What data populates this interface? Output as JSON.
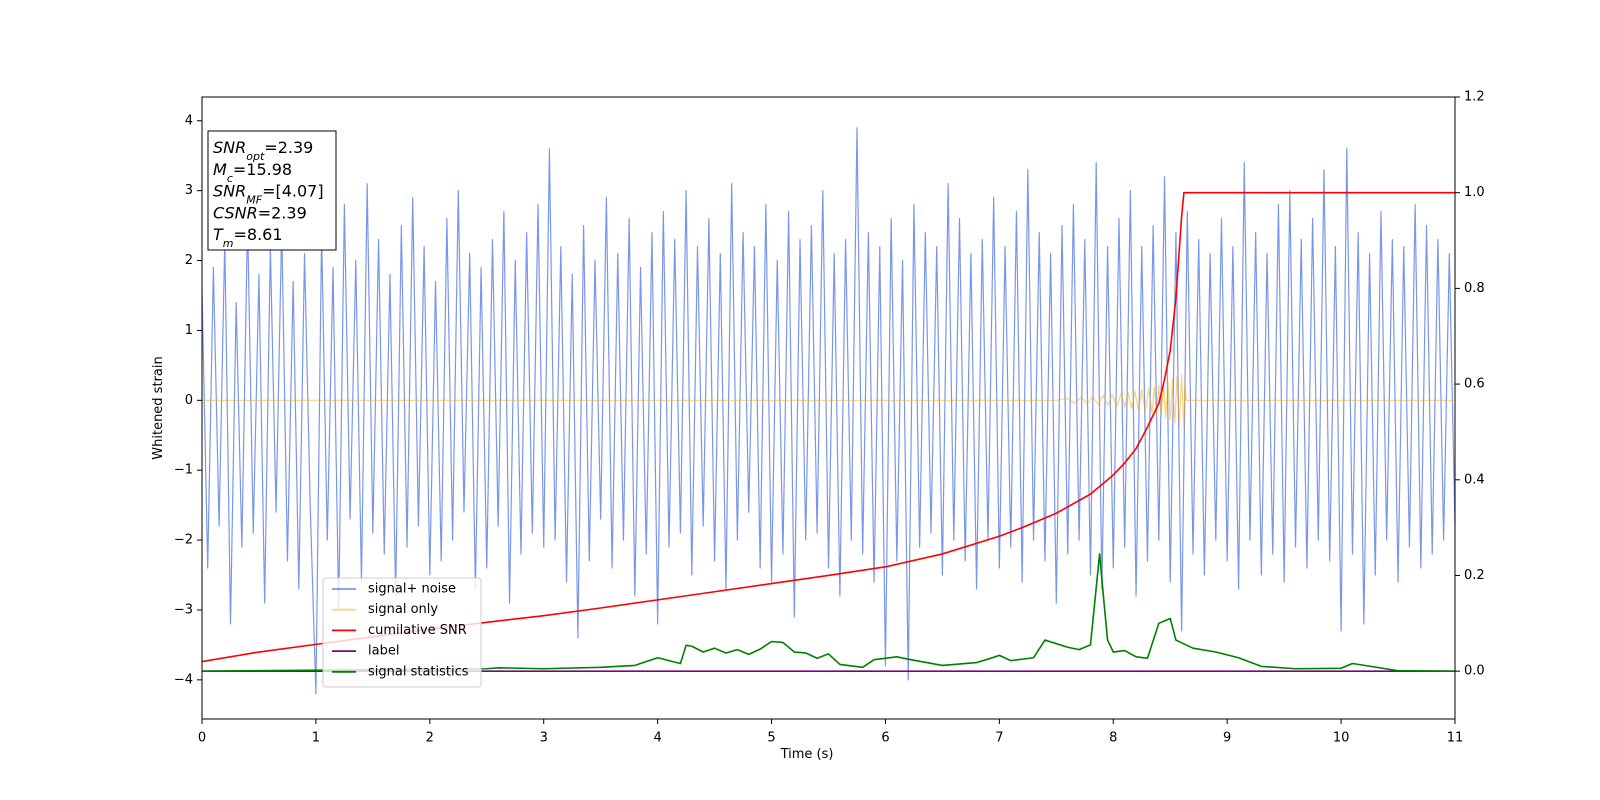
{
  "chart_data": {
    "type": "line",
    "xlabel": "Time (s)",
    "ylabel": "Whitened strain",
    "xlim": [
      0,
      11
    ],
    "xticks": [
      0,
      1,
      2,
      3,
      4,
      5,
      6,
      7,
      8,
      9,
      10,
      11
    ],
    "ylim": [
      -4.56,
      4.34
    ],
    "yticks": [
      {
        "value": -4,
        "label": "−4"
      },
      {
        "value": -3,
        "label": "−3"
      },
      {
        "value": -2,
        "label": "−2"
      },
      {
        "value": -1,
        "label": "−1"
      },
      0,
      1,
      2,
      3,
      4
    ],
    "y2lim": [
      -0.1,
      1.2
    ],
    "y2ticks": [
      {
        "value": 0,
        "label": "0.0"
      },
      0.2,
      0.4,
      0.6,
      0.8,
      {
        "value": 1,
        "label": "1.0"
      },
      1.2
    ],
    "annotation": [
      {
        "symbol": "SNR",
        "subscript": "opt",
        "text": "=2.39"
      },
      {
        "symbol": "M",
        "subscript": "c",
        "text": "=15.98"
      },
      {
        "symbol": "SNR",
        "subscript": "MF",
        "text": "=[4.07]"
      },
      {
        "symbol": "CSNR",
        "text": "=2.39"
      },
      {
        "symbol": "T",
        "subscript": "m",
        "text": "=8.61"
      }
    ],
    "series": [
      {
        "name": "signal+ noise",
        "color": "#4169e1",
        "alpha": 0.7,
        "x": [
          0,
          0.05,
          0.1,
          0.15,
          0.2,
          0.25,
          0.3,
          0.35,
          0.4,
          0.45,
          0.5,
          0.55,
          0.6,
          0.65,
          0.7,
          0.75,
          0.8,
          0.85,
          0.9,
          0.95,
          1,
          1.05,
          1.1,
          1.15,
          1.2,
          1.25,
          1.3,
          1.35,
          1.4,
          1.45,
          1.5,
          1.55,
          1.6,
          1.65,
          1.7,
          1.75,
          1.8,
          1.85,
          1.9,
          1.95,
          2,
          2.05,
          2.1,
          2.15,
          2.2,
          2.25,
          2.3,
          2.35,
          2.4,
          2.45,
          2.5,
          2.55,
          2.6,
          2.65,
          2.7,
          2.75,
          2.8,
          2.85,
          2.9,
          2.95,
          3,
          3.05,
          3.1,
          3.15,
          3.2,
          3.25,
          3.3,
          3.35,
          3.4,
          3.45,
          3.5,
          3.55,
          3.6,
          3.65,
          3.7,
          3.75,
          3.8,
          3.85,
          3.9,
          3.95,
          4,
          4.05,
          4.1,
          4.15,
          4.2,
          4.25,
          4.3,
          4.35,
          4.4,
          4.45,
          4.5,
          4.55,
          4.6,
          4.65,
          4.7,
          4.75,
          4.8,
          4.85,
          4.9,
          4.95,
          5,
          5.05,
          5.1,
          5.15,
          5.2,
          5.25,
          5.3,
          5.35,
          5.4,
          5.45,
          5.5,
          5.55,
          5.6,
          5.65,
          5.7,
          5.75,
          5.8,
          5.85,
          5.9,
          5.95,
          6,
          6.05,
          6.1,
          6.15,
          6.2,
          6.25,
          6.3,
          6.35,
          6.4,
          6.45,
          6.5,
          6.55,
          6.6,
          6.65,
          6.7,
          6.75,
          6.8,
          6.85,
          6.9,
          6.95,
          7,
          7.05,
          7.1,
          7.15,
          7.2,
          7.25,
          7.3,
          7.35,
          7.4,
          7.45,
          7.5,
          7.55,
          7.6,
          7.65,
          7.7,
          7.75,
          7.8,
          7.85,
          7.9,
          7.95,
          8,
          8.05,
          8.1,
          8.15,
          8.2,
          8.25,
          8.3,
          8.35,
          8.4,
          8.45,
          8.5,
          8.55,
          8.6,
          8.65,
          8.7,
          8.75,
          8.8,
          8.85,
          8.9,
          8.95,
          9,
          9.05,
          9.1,
          9.15,
          9.2,
          9.25,
          9.3,
          9.35,
          9.4,
          9.45,
          9.5,
          9.55,
          9.6,
          9.65,
          9.7,
          9.75,
          9.8,
          9.85,
          9.9,
          9.95,
          10,
          10.05,
          10.1,
          10.15,
          10.2,
          10.25,
          10.3,
          10.35,
          10.4,
          10.45,
          10.5,
          10.55,
          10.6,
          10.65,
          10.7,
          10.75,
          10.8,
          10.85,
          10.9,
          10.95,
          11
        ],
        "values": [
          1.6,
          -2.4,
          1.9,
          -1.8,
          2.3,
          -3.2,
          1.4,
          -2.1,
          2.6,
          -1.9,
          1.8,
          -2.9,
          2.2,
          -1.6,
          2.5,
          -2.3,
          1.7,
          -2.7,
          2.1,
          -1.5,
          -4.2,
          2.4,
          -2.0,
          1.9,
          -3.0,
          2.8,
          -1.7,
          2.0,
          -2.6,
          3.1,
          -1.9,
          2.3,
          -2.2,
          1.8,
          -2.8,
          2.5,
          -2.1,
          2.9,
          -1.8,
          2.2,
          -2.5,
          1.7,
          -2.3,
          2.6,
          -2.0,
          3.0,
          -1.6,
          2.1,
          -2.7,
          1.9,
          -2.4,
          2.3,
          -1.8,
          2.7,
          -2.9,
          2.0,
          -2.2,
          2.4,
          -1.9,
          2.8,
          -2.1,
          3.6,
          -2.0,
          2.2,
          -2.6,
          1.8,
          -3.4,
          2.5,
          -2.3,
          2.0,
          -1.7,
          2.9,
          -2.4,
          2.1,
          -2.0,
          2.6,
          -2.8,
          1.9,
          -2.2,
          2.4,
          -3.2,
          2.7,
          -2.1,
          2.3,
          -1.9,
          3.0,
          -2.5,
          2.2,
          -1.8,
          2.6,
          -2.3,
          2.1,
          -2.7,
          3.1,
          -2.0,
          2.4,
          -1.6,
          2.2,
          -2.4,
          2.8,
          -2.6,
          2.0,
          -2.2,
          2.7,
          -3.1,
          2.3,
          -2.0,
          2.5,
          -1.9,
          3.0,
          -2.4,
          2.1,
          -2.8,
          2.3,
          -2.0,
          3.9,
          -2.2,
          2.4,
          -2.6,
          2.2,
          -3.8,
          2.6,
          -2.3,
          2.0,
          -4.0,
          2.8,
          -2.1,
          2.4,
          -1.9,
          2.2,
          -2.5,
          3.1,
          -2.0,
          2.6,
          -2.3,
          2.1,
          -2.7,
          2.3,
          -2.0,
          2.9,
          -2.4,
          2.2,
          -2.1,
          2.7,
          -2.6,
          3.3,
          -2.0,
          2.4,
          -2.3,
          2.1,
          -2.9,
          2.5,
          -2.2,
          2.8,
          -2.0,
          2.3,
          -2.5,
          3.4,
          -2.7,
          2.2,
          -2.4,
          2.6,
          -2.1,
          3.0,
          -2.8,
          2.2,
          -2.3,
          2.5,
          -2.0,
          3.2,
          -2.6,
          2.4,
          -3.3,
          2.7,
          -2.2,
          2.3,
          -2.5,
          2.1,
          -2.0,
          2.6,
          -2.3,
          2.2,
          -2.7,
          3.4,
          -2.0,
          2.4,
          -2.5,
          2.1,
          -2.2,
          2.8,
          -2.6,
          3.0,
          -2.1,
          2.3,
          -2.4,
          2.6,
          -2.0,
          3.3,
          -2.3,
          2.2,
          -3.3,
          3.6,
          -2.2,
          2.4,
          -3.2,
          2.1,
          -2.5,
          2.7,
          -2.0,
          2.3,
          -2.6,
          2.2,
          -2.1,
          2.8,
          -2.4,
          2.5,
          -2.2,
          2.3,
          -2.0,
          2.1,
          -1.8
        ]
      },
      {
        "name": "signal only",
        "color": "#ffa500",
        "alpha": 0.5,
        "x": [
          0,
          7.5,
          7.6,
          7.66,
          7.72,
          7.77,
          7.82,
          7.87,
          7.91,
          7.95,
          7.99,
          8.03,
          8.07,
          8.1,
          8.13,
          8.16,
          8.19,
          8.22,
          8.25,
          8.28,
          8.31,
          8.34,
          8.36,
          8.38,
          8.4,
          8.42,
          8.44,
          8.46,
          8.48,
          8.5,
          8.52,
          8.54,
          8.56,
          8.58,
          8.6,
          8.62,
          8.63,
          8.64,
          11
        ],
        "values": [
          0,
          0,
          0.03,
          -0.04,
          0.04,
          -0.05,
          0.05,
          -0.06,
          0.07,
          -0.07,
          0.08,
          -0.09,
          0.1,
          -0.1,
          0.11,
          -0.12,
          0.13,
          -0.14,
          0.15,
          -0.16,
          0.17,
          -0.18,
          0.19,
          -0.2,
          0.21,
          -0.22,
          0.23,
          -0.25,
          0.26,
          -0.28,
          0.3,
          -0.32,
          0.34,
          -0.36,
          0.37,
          -0.4,
          0.3,
          0,
          0
        ]
      },
      {
        "name": "cumilative SNR",
        "color": "red",
        "axis": "y2",
        "x": [
          0,
          0.5,
          1,
          1.5,
          2,
          2.5,
          3,
          3.5,
          4,
          4.5,
          5,
          5.5,
          6,
          6.5,
          7,
          7.2,
          7.5,
          7.8,
          8,
          8.1,
          8.2,
          8.3,
          8.4,
          8.45,
          8.5,
          8.55,
          8.6,
          8.62,
          11
        ],
        "values": [
          0.02,
          0.04,
          0.056,
          0.072,
          0.088,
          0.102,
          0.116,
          0.132,
          0.149,
          0.166,
          0.183,
          0.2,
          0.218,
          0.245,
          0.282,
          0.3,
          0.33,
          0.37,
          0.41,
          0.435,
          0.465,
          0.51,
          0.56,
          0.61,
          0.67,
          0.78,
          0.95,
          1.0,
          1.0
        ]
      },
      {
        "name": "label",
        "color": "purple",
        "axis": "y2",
        "x": [
          0,
          11
        ],
        "values": [
          0,
          0
        ]
      },
      {
        "name": "signal statistics",
        "color": "green",
        "axis": "y2",
        "x": [
          0,
          0.5,
          1,
          1.5,
          2,
          2.5,
          2.6,
          3,
          3.5,
          3.8,
          4,
          4.1,
          4.2,
          4.25,
          4.3,
          4.4,
          4.5,
          4.6,
          4.7,
          4.8,
          4.9,
          5,
          5.1,
          5.2,
          5.3,
          5.4,
          5.5,
          5.6,
          5.8,
          5.9,
          6.1,
          6.2,
          6.5,
          6.8,
          6.9,
          7,
          7.1,
          7.3,
          7.4,
          7.6,
          7.7,
          7.8,
          7.88,
          7.92,
          7.95,
          8,
          8.1,
          8.2,
          8.3,
          8.4,
          8.45,
          8.5,
          8.55,
          8.7,
          8.9,
          9.1,
          9.3,
          9.6,
          10,
          10.1,
          10.5,
          11
        ],
        "values": [
          0.0,
          0.001,
          0.002,
          0.003,
          0.004,
          0.005,
          0.007,
          0.005,
          0.008,
          0.012,
          0.028,
          0.022,
          0.016,
          0.054,
          0.052,
          0.04,
          0.048,
          0.038,
          0.045,
          0.035,
          0.046,
          0.062,
          0.06,
          0.04,
          0.038,
          0.027,
          0.036,
          0.014,
          0.008,
          0.024,
          0.03,
          0.025,
          0.012,
          0.018,
          0.025,
          0.033,
          0.022,
          0.028,
          0.065,
          0.05,
          0.045,
          0.055,
          0.245,
          0.14,
          0.065,
          0.04,
          0.043,
          0.03,
          0.027,
          0.1,
          0.105,
          0.11,
          0.065,
          0.048,
          0.04,
          0.028,
          0.01,
          0.005,
          0.006,
          0.016,
          0.001,
          0.0
        ]
      }
    ]
  }
}
